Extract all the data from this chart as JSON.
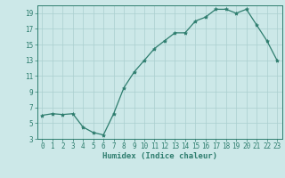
{
  "x": [
    0,
    1,
    2,
    3,
    4,
    5,
    6,
    7,
    8,
    9,
    10,
    11,
    12,
    13,
    14,
    15,
    16,
    17,
    18,
    19,
    20,
    21,
    22,
    23
  ],
  "y": [
    6,
    6.2,
    6.1,
    6.2,
    4.5,
    3.8,
    3.5,
    6.2,
    9.5,
    11.5,
    13,
    14.5,
    15.5,
    16.5,
    16.5,
    18,
    18.5,
    19.5,
    19.5,
    19,
    19.5,
    17.5,
    15.5,
    13
  ],
  "line_color": "#2e7d6e",
  "marker": "*",
  "marker_size": 3,
  "bg_color": "#cce8e8",
  "grid_color": "#aacfcf",
  "xlabel": "Humidex (Indice chaleur)",
  "xlim": [
    -0.5,
    23.5
  ],
  "ylim": [
    3,
    20
  ],
  "yticks": [
    3,
    5,
    7,
    9,
    11,
    13,
    15,
    17,
    19
  ],
  "xticks": [
    0,
    1,
    2,
    3,
    4,
    5,
    6,
    7,
    8,
    9,
    10,
    11,
    12,
    13,
    14,
    15,
    16,
    17,
    18,
    19,
    20,
    21,
    22,
    23
  ],
  "tick_color": "#2e7d6e",
  "label_color": "#2e7d6e",
  "tick_fontsize": 5.5,
  "xlabel_fontsize": 6.5
}
